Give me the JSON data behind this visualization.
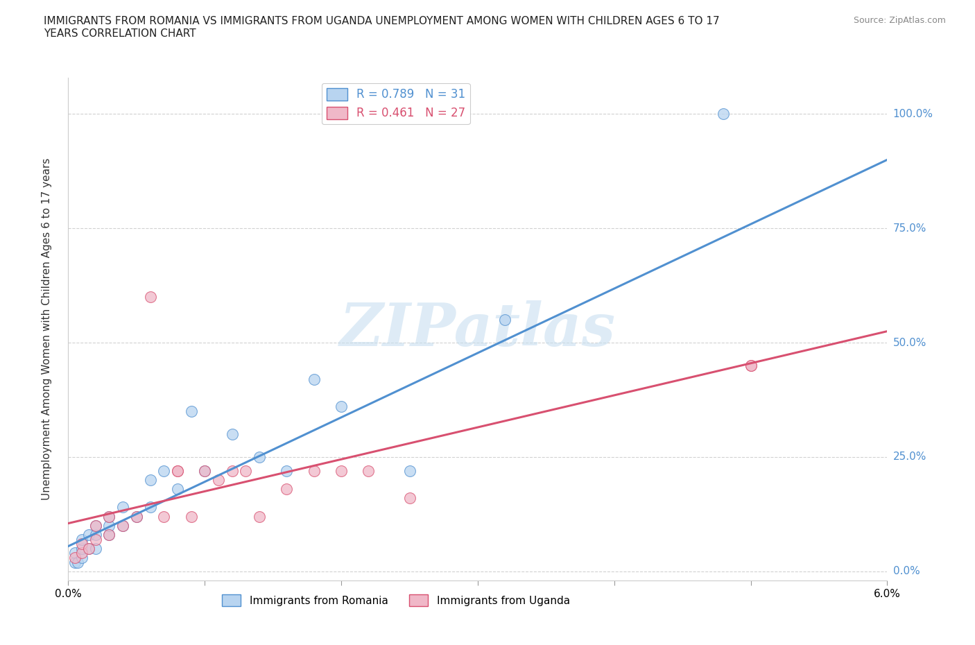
{
  "title": "IMMIGRANTS FROM ROMANIA VS IMMIGRANTS FROM UGANDA UNEMPLOYMENT AMONG WOMEN WITH CHILDREN AGES 6 TO 17\nYEARS CORRELATION CHART",
  "source": "Source: ZipAtlas.com",
  "ylabel": "Unemployment Among Women with Children Ages 6 to 17 years",
  "xlim": [
    0.0,
    0.06
  ],
  "ylim": [
    -0.02,
    1.08
  ],
  "yticks": [
    0.0,
    0.25,
    0.5,
    0.75,
    1.0
  ],
  "ytick_labels": [
    "0.0%",
    "25.0%",
    "50.0%",
    "75.0%",
    "100.0%"
  ],
  "xticks": [
    0.0,
    0.01,
    0.02,
    0.03,
    0.04,
    0.05,
    0.06
  ],
  "xtick_labels": [
    "0.0%",
    "",
    "",
    "",
    "",
    "",
    "6.0%"
  ],
  "romania_R": 0.789,
  "romania_N": 31,
  "uganda_R": 0.461,
  "uganda_N": 27,
  "romania_color": "#b8d4f0",
  "uganda_color": "#f0b8c8",
  "romania_line_color": "#5090d0",
  "uganda_line_color": "#d85070",
  "romania_line_x0": 0.0,
  "romania_line_y0": 0.055,
  "romania_line_x1": 0.06,
  "romania_line_y1": 0.9,
  "uganda_line_x0": 0.0,
  "uganda_line_y0": 0.105,
  "uganda_line_x1": 0.06,
  "uganda_line_y1": 0.525,
  "romania_scatter_x": [
    0.0005,
    0.0005,
    0.0007,
    0.001,
    0.001,
    0.001,
    0.0015,
    0.0015,
    0.002,
    0.002,
    0.002,
    0.003,
    0.003,
    0.003,
    0.004,
    0.004,
    0.005,
    0.006,
    0.006,
    0.007,
    0.008,
    0.009,
    0.01,
    0.012,
    0.014,
    0.016,
    0.018,
    0.02,
    0.025,
    0.032,
    0.048
  ],
  "romania_scatter_y": [
    0.02,
    0.04,
    0.02,
    0.03,
    0.05,
    0.07,
    0.05,
    0.08,
    0.05,
    0.08,
    0.1,
    0.08,
    0.1,
    0.12,
    0.1,
    0.14,
    0.12,
    0.14,
    0.2,
    0.22,
    0.18,
    0.35,
    0.22,
    0.3,
    0.25,
    0.22,
    0.42,
    0.36,
    0.22,
    0.55,
    1.0
  ],
  "uganda_scatter_x": [
    0.0005,
    0.001,
    0.001,
    0.0015,
    0.002,
    0.002,
    0.003,
    0.003,
    0.004,
    0.005,
    0.006,
    0.007,
    0.008,
    0.008,
    0.009,
    0.01,
    0.011,
    0.012,
    0.013,
    0.014,
    0.016,
    0.018,
    0.02,
    0.022,
    0.025,
    0.05,
    0.05
  ],
  "uganda_scatter_y": [
    0.03,
    0.04,
    0.06,
    0.05,
    0.07,
    0.1,
    0.08,
    0.12,
    0.1,
    0.12,
    0.6,
    0.12,
    0.22,
    0.22,
    0.12,
    0.22,
    0.2,
    0.22,
    0.22,
    0.12,
    0.18,
    0.22,
    0.22,
    0.22,
    0.16,
    0.45,
    0.45
  ],
  "background_color": "#ffffff",
  "watermark_text": "ZIPatlas",
  "watermark_color": "#c8dff0",
  "grid_color": "#cccccc"
}
